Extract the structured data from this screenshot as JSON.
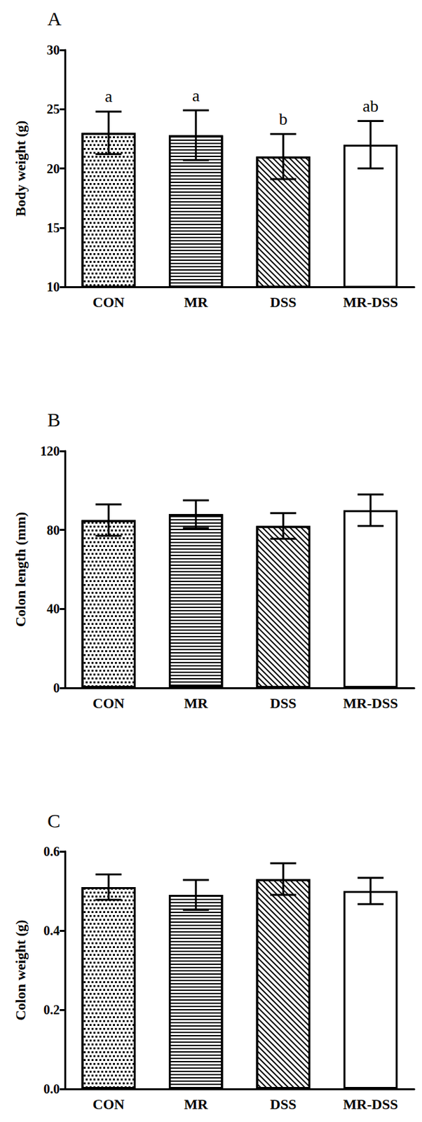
{
  "chart_data": [
    {
      "type": "bar",
      "title": "A",
      "ylabel": "Body weight (g)",
      "categories": [
        "CON",
        "MR",
        "DSS",
        "MR-DSS"
      ],
      "values": [
        23.0,
        22.8,
        21.0,
        22.0
      ],
      "errors": [
        1.8,
        2.1,
        1.9,
        2.0
      ],
      "annotations": [
        "a",
        "a",
        "b",
        "ab"
      ],
      "colors": [
        "#ffffff",
        "#ffffff",
        "#ffffff",
        "#ffffff"
      ],
      "ylim": [
        10,
        30
      ],
      "yticks": [
        10,
        15,
        20,
        25,
        30
      ],
      "grid": false
    },
    {
      "type": "bar",
      "title": "B",
      "ylabel": "Colon length (mm)",
      "categories": [
        "CON",
        "MR",
        "DSS",
        "MR-DSS"
      ],
      "values": [
        85,
        88,
        82,
        90
      ],
      "errors": [
        8,
        7,
        6.5,
        8
      ],
      "colors": [
        "#ffffff",
        "#ffffff",
        "#ffffff",
        "#ffffff"
      ],
      "ylim": [
        0,
        120
      ],
      "yticks": [
        0,
        40,
        80,
        120
      ],
      "grid": false
    },
    {
      "type": "bar",
      "title": "C",
      "ylabel": "Colon weight (g)",
      "categories": [
        "CON",
        "MR",
        "DSS",
        "MR-DSS"
      ],
      "values": [
        0.51,
        0.49,
        0.53,
        0.5
      ],
      "errors": [
        0.032,
        0.038,
        0.04,
        0.033
      ],
      "colors": [
        "#ffffff",
        "#ffffff",
        "#ffffff",
        "#ffffff"
      ],
      "ylim": [
        0,
        0.6
      ],
      "yticks": [
        {
          "value": 0,
          "label": "0.0"
        },
        0.2,
        0.4,
        0.6
      ],
      "grid": false
    }
  ]
}
